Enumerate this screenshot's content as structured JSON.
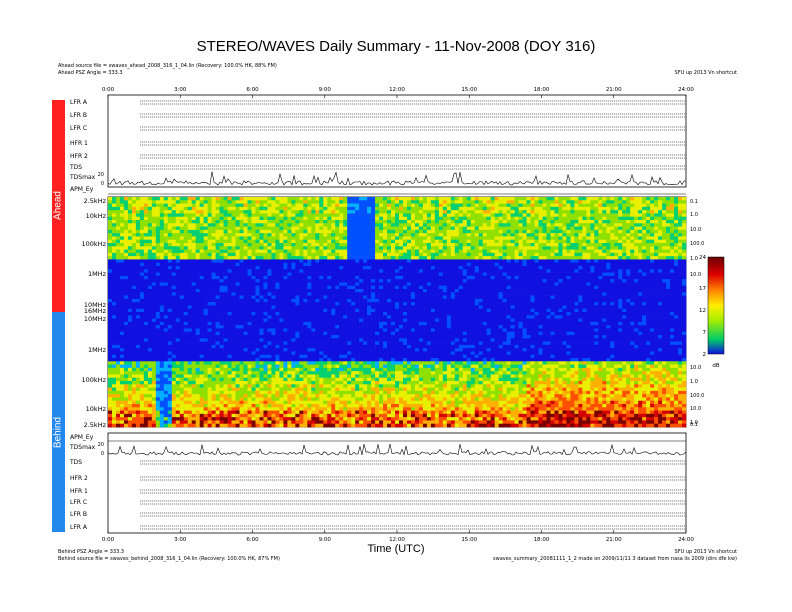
{
  "header": {
    "title": "STEREO/WAVES Daily Summary - 11-Nov-2008 (DOY 316)",
    "ahead_source": "Ahead source file = swaves_ahead_2008_316_1_04.lin (Recovery: 100.0% HK, 88% FM)",
    "ahead_angle": "Ahead PSZ Angle = 333.3",
    "top_right_note": "SFU up 2013 Vn shortcut"
  },
  "footer": {
    "behind_angle": "Behind PSZ Angle = 333.3",
    "behind_source": "Behind source file = swaves_behind_2008_316_1_04.lin (Recovery: 100.0% HK, 87% FM)",
    "right_note_1": "SFU up 2013 Vn shortcut",
    "right_note_2": "swaves_summary_20081111_1_2 made on 2009/11/11 3 dataset from nasa lis 2009 (dirs dfe kw)"
  },
  "side_labels": {
    "ahead": "Ahead",
    "behind": "Behind"
  },
  "chart_data": {
    "type": "heatmap",
    "xlabel": "Time (UTC)",
    "x_ticks": [
      "0:00",
      "3:00",
      "6:00",
      "9:00",
      "12:00",
      "15:00",
      "18:00",
      "21:00",
      "24:00"
    ],
    "xlim_hours": [
      0,
      24
    ],
    "colorbar": {
      "ticks": [
        2,
        7,
        12,
        17,
        24
      ],
      "unit": "dB",
      "range": [
        2,
        24
      ]
    },
    "colors": {
      "ahead": "#ff2020",
      "behind": "#2288ee",
      "spec_low": "#1010e0",
      "spec_high": "#8b0000"
    },
    "ahead": {
      "panel_rows": [
        "LFR A",
        "LFR B",
        "LFR C",
        "HFR 1",
        "HFR 2",
        "TDS",
        "TDSmax",
        "APM_Ey"
      ],
      "tds_ticks": [
        "20",
        "0"
      ],
      "spectrogram_freq_labels": [
        "2.5kHz",
        "10kHz",
        "100kHz",
        "1MHz",
        "10MHz",
        "16MHz"
      ],
      "right_scale": [
        "0.1",
        "1.0",
        "10.0",
        "100.0",
        "1.0",
        "10.0"
      ]
    },
    "behind": {
      "spectrogram_freq_labels": [
        "10MHz",
        "1MHz",
        "100kHz",
        "10kHz",
        "2.5kHz"
      ],
      "right_scale": [
        "10.0",
        "1.0",
        "100.0",
        "10.0",
        "1.0",
        "0.1"
      ],
      "panel_rows": [
        "APM_Ey",
        "TDSmax",
        "TDS",
        "HFR 2",
        "HFR 1",
        "LFR C",
        "LFR B",
        "LFR A"
      ],
      "tds_ticks": [
        "20",
        "0"
      ]
    }
  }
}
